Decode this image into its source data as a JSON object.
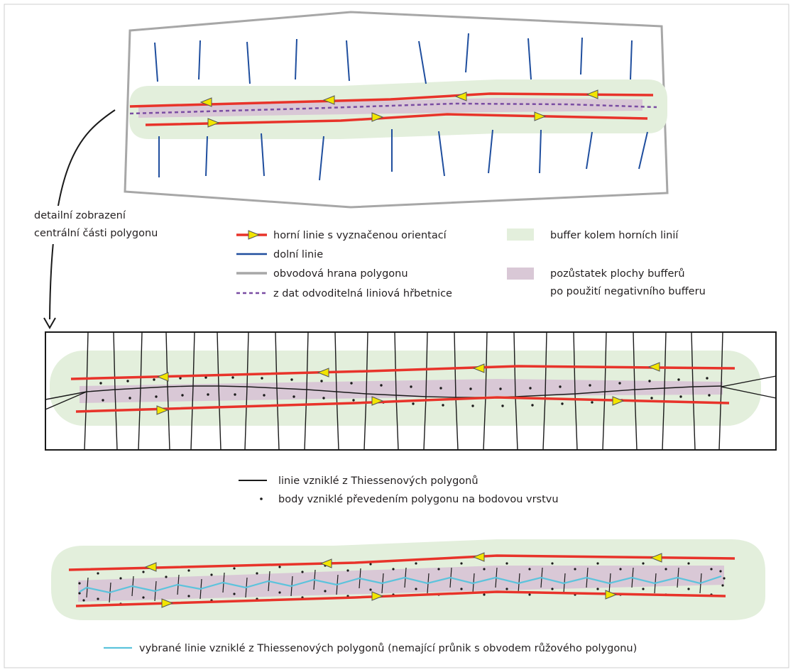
{
  "callout": {
    "line1": "detailní zobrazení",
    "line2": "centrální části polygonu"
  },
  "legend_top": {
    "upper_line": "horní linie s vyznačenou orientací",
    "lower_line": "dolní linie",
    "boundary": "obvodová hrana polygonu",
    "spine": "z dat odvoditelná liniová hřbetnice",
    "buffer": "buffer kolem horních linií",
    "remnant_line1": "pozůstatek plochy bufferů",
    "remnant_line2": "po použití negativního bufferu"
  },
  "legend_mid": {
    "thiessen_lines": "linie vzniklé z Thiessenových polygonů",
    "points": "body vzniklé převedením polygonu na bodovou vrstvu"
  },
  "legend_bottom": {
    "selected_lines": "vybrané linie vzniklé z Thiessenových polygonů (nemající průnik s obvodem růžového polygonu)"
  },
  "colors": {
    "upper_line": "#e8332a",
    "arrow": "#f2e500",
    "lower_line": "#1f4e9e",
    "boundary": "#a7a7a7",
    "spine": "#7a4da3",
    "buffer": "#e3efdc",
    "remnant": "#d9c8d6",
    "thiessen": "#1a1a1a",
    "selected": "#5cc3dc"
  },
  "icons": {
    "arrow": "triangle-arrow-icon",
    "point": "dot-icon"
  }
}
